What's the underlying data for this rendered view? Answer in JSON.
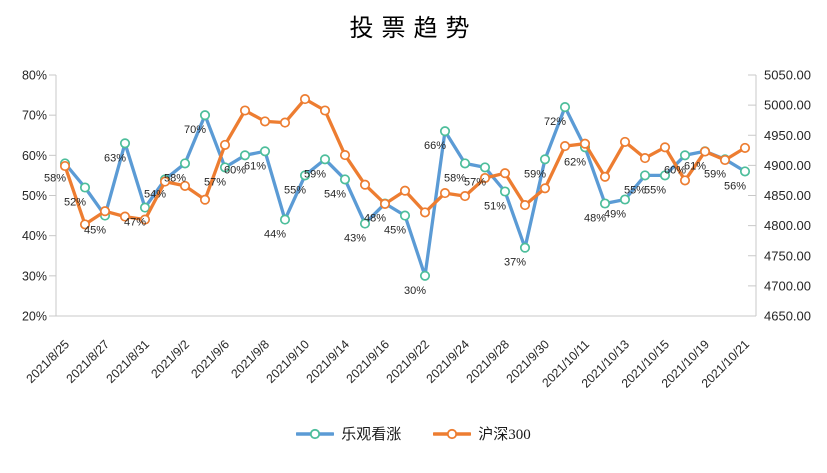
{
  "chart_data": {
    "type": "line",
    "title": "投票趋势",
    "legend_position": "bottom",
    "grid": "off",
    "x_tick_labels": [
      "2021/8/25",
      "2021/8/27",
      "2021/8/31",
      "2021/9/2",
      "2021/9/6",
      "2021/9/8",
      "2021/9/10",
      "2021/9/14",
      "2021/9/16",
      "2021/9/22",
      "2021/9/24",
      "2021/9/28",
      "2021/9/30",
      "2021/10/11",
      "2021/10/13",
      "2021/10/15",
      "2021/10/19",
      "2021/10/21"
    ],
    "x_tick_label_every_n_points": 2,
    "left_axis": {
      "min": 20,
      "max": 80,
      "unit": "%",
      "ticks": [
        "80%",
        "70%",
        "60%",
        "50%",
        "40%",
        "30%",
        "20%"
      ]
    },
    "right_axis": {
      "min": 4650,
      "max": 5050,
      "ticks": [
        "5050.00",
        "5000.00",
        "4950.00",
        "4900.00",
        "4850.00",
        "4800.00",
        "4750.00",
        "4700.00",
        "4650.00"
      ]
    },
    "series": [
      {
        "name": "乐观看涨",
        "axis": "left",
        "line_color": "#5B9BD5",
        "marker_ring_color": "#4DBE9B",
        "show_data_labels": true,
        "label_suffix": "%",
        "values": [
          58,
          52,
          45,
          63,
          47,
          54,
          58,
          70,
          57,
          60,
          61,
          44,
          55,
          59,
          54,
          43,
          48,
          45,
          30,
          66,
          58,
          57,
          51,
          37,
          59,
          72,
          62,
          48,
          49,
          55,
          55,
          60,
          61,
          59,
          56
        ]
      },
      {
        "name": "沪深300",
        "axis": "right",
        "line_color": "#ED7D31",
        "marker_ring_color": "#ED7D31",
        "show_data_labels": false,
        "values": [
          4899,
          4802,
          4824,
          4815,
          4810,
          4873,
          4866,
          4843,
          4934,
          4991,
          4973,
          4971,
          5010,
          4991,
          4917,
          4868,
          4836,
          4858,
          4822,
          4854,
          4849,
          4879,
          4887,
          4834,
          4862,
          4932,
          4936,
          4881,
          4939,
          4912,
          4930,
          4875,
          4923,
          4909,
          4929
        ]
      }
    ]
  },
  "legend": {
    "items": [
      {
        "label": "乐观看涨",
        "line_color": "#5B9BD5",
        "marker_ring_color": "#4DBE9B"
      },
      {
        "label": "沪深300",
        "line_color": "#ED7D31",
        "marker_ring_color": "#ED7D31"
      }
    ]
  },
  "colors": {
    "axis_line": "#C8C8C8",
    "axis_text": "#262626",
    "data_label_text": "#262626",
    "background": "#FFFFFF"
  }
}
